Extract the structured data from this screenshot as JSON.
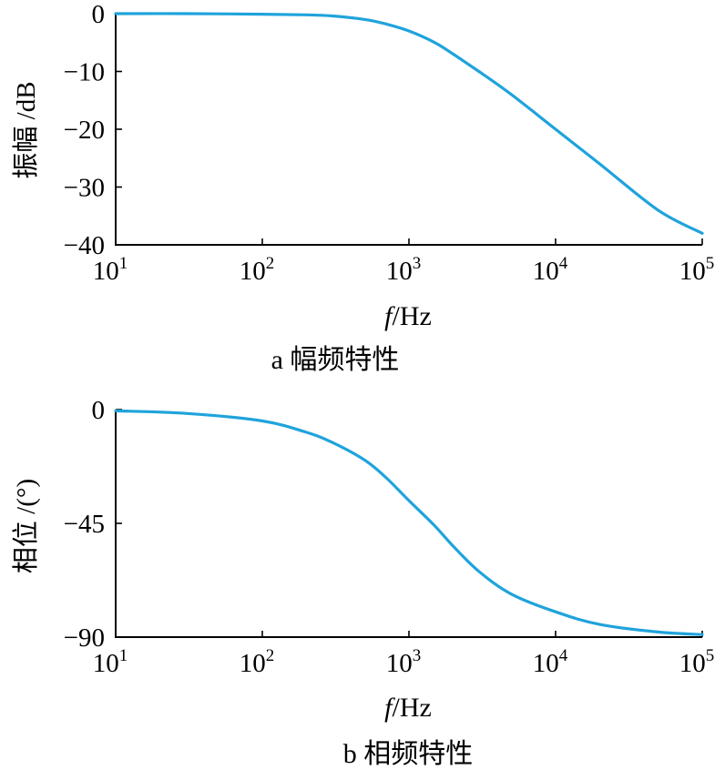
{
  "colors": {
    "curve": "#1fa3dc",
    "axis": "#000000"
  },
  "chart_data": [
    {
      "type": "line",
      "caption": "a 幅频特性",
      "xlabel_italic": "f",
      "xlabel_unit": "/Hz",
      "ylabel": "振幅 /dB",
      "xscale": "log",
      "xlim": [
        10,
        100000
      ],
      "ylim": [
        -40,
        0
      ],
      "xticks": [
        {
          "base": "10",
          "exp": "1"
        },
        {
          "base": "10",
          "exp": "2"
        },
        {
          "base": "10",
          "exp": "3"
        },
        {
          "base": "10",
          "exp": "4"
        },
        {
          "base": "10",
          "exp": "5"
        }
      ],
      "yticks": [
        "0",
        "−10",
        "−20",
        "−30",
        "−40"
      ],
      "ytick_values": [
        0,
        -10,
        -20,
        -30,
        -40
      ],
      "series": [
        {
          "x": [
            10,
            30,
            100,
            200,
            300,
            500,
            700,
            1000,
            1500,
            2000,
            3000,
            5000,
            10000,
            20000,
            50000,
            100000
          ],
          "values": [
            0,
            0,
            -0.1,
            -0.2,
            -0.4,
            -1.0,
            -1.8,
            -3.0,
            -5.0,
            -7.0,
            -10.0,
            -14.0,
            -20.0,
            -26.0,
            -34.0,
            -38.0
          ]
        }
      ]
    },
    {
      "type": "line",
      "caption": "b 相频特性",
      "xlabel_italic": "f",
      "xlabel_unit": "/Hz",
      "ylabel": "相位 /(°)",
      "xscale": "log",
      "xlim": [
        10,
        100000
      ],
      "ylim": [
        -90,
        0
      ],
      "xticks": [
        {
          "base": "10",
          "exp": "1"
        },
        {
          "base": "10",
          "exp": "2"
        },
        {
          "base": "10",
          "exp": "3"
        },
        {
          "base": "10",
          "exp": "4"
        },
        {
          "base": "10",
          "exp": "5"
        }
      ],
      "yticks": [
        "0",
        "−45",
        "−90"
      ],
      "ytick_values": [
        0,
        -45,
        -90
      ],
      "series": [
        {
          "x": [
            10,
            30,
            100,
            200,
            300,
            500,
            700,
            1000,
            1500,
            2000,
            3000,
            5000,
            10000,
            20000,
            50000,
            100000
          ],
          "values": [
            -0.5,
            -1.5,
            -4.5,
            -9,
            -13,
            -20,
            -27,
            -36,
            -46,
            -54,
            -64,
            -73,
            -80,
            -85,
            -88,
            -89
          ]
        }
      ]
    }
  ]
}
